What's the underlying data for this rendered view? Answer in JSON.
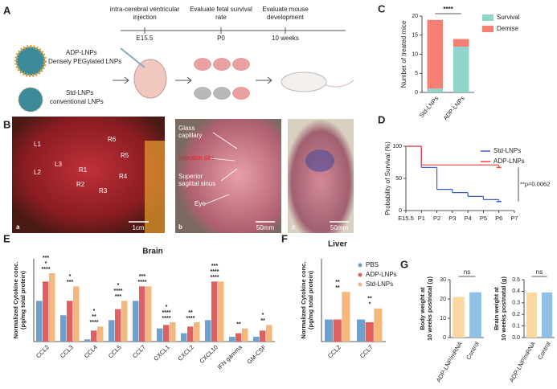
{
  "panel_a": {
    "label": "A",
    "timeline": [
      {
        "event": [
          "intra-cerebral ventricular",
          "injection"
        ],
        "time": "E15.5"
      },
      {
        "event": [
          "Evaluate fetal survival",
          "rate"
        ],
        "time": "P0"
      },
      {
        "event": [
          "Evaluate mouse",
          "development"
        ],
        "time": "10 weeks"
      }
    ],
    "formulations": [
      {
        "name": "ADP-LNPs",
        "description": "Densely PEGylated LNPs"
      },
      {
        "name": "Std-LNPs",
        "description": "conventional LNPs"
      }
    ]
  },
  "panel_b": {
    "label": "B",
    "photo_a": {
      "tag": "a",
      "scale": "1cm",
      "lobes": [
        "L1",
        "L3",
        "L2",
        "R1",
        "R2",
        "R3",
        "R4",
        "R5",
        "R6"
      ]
    },
    "photo_b": {
      "tag": "b",
      "scale": "50mm",
      "labels": [
        [
          "Glass",
          "capillary"
        ],
        [
          "Injection site"
        ],
        [
          "Superior",
          "sagittal sinus"
        ],
        [
          "Eye"
        ]
      ]
    },
    "photo_c": {
      "tag": "c",
      "scale": "50mm"
    }
  },
  "chart_data": [
    {
      "panel": "C",
      "type": "stacked_bar",
      "categories": [
        "Std-LNPs",
        "ADP-LNPs"
      ],
      "series": [
        {
          "name": "Survival",
          "color": "#8fd5cc",
          "values": [
            1,
            12
          ]
        },
        {
          "name": "Demise",
          "color": "#f47f72",
          "values": [
            18,
            2
          ]
        }
      ],
      "ylabel": "Number of treated mice",
      "ylim": [
        0,
        20
      ],
      "yticks": [
        0,
        5,
        10,
        15,
        20
      ],
      "annotation": "****"
    },
    {
      "panel": "D",
      "type": "step",
      "categories": [
        "E15.5",
        "P1",
        "P2",
        "P3",
        "P4",
        "P5",
        "P6",
        "P7"
      ],
      "series": [
        {
          "name": "Std-LNPs",
          "color": "#3a5fcd",
          "values": [
            100,
            67,
            33,
            28,
            22,
            17,
            14,
            null
          ]
        },
        {
          "name": "ADP-LNPs",
          "color": "#e8453c",
          "values": [
            100,
            71,
            71,
            71,
            71,
            71,
            67,
            null
          ]
        }
      ],
      "ylabel": "Probability of Survival (%)",
      "ylim": [
        0,
        100
      ],
      "yticks": [
        0,
        50,
        100
      ],
      "annotation": "**p=0.0062"
    },
    {
      "panel": "E",
      "type": "grouped_bar",
      "title": "Brain",
      "log_scale": true,
      "ylim": [
        0.1,
        100
      ],
      "ylabel": [
        "Normalized Cytokine conc.",
        "(pg/mg total protein)"
      ],
      "categories": [
        "CCL2",
        "CCL3",
        "CCL4",
        "CCL5",
        "CCL7",
        "CXCL1",
        "CXCL2",
        "CXCL10",
        "IFN gamma",
        "GM-CSF"
      ],
      "series": [
        {
          "name": "PBS",
          "color": "#6ea0cf",
          "values": [
            3,
            0.9,
            0.12,
            0.6,
            3,
            0.3,
            0.2,
            0.6,
            0.15,
            0.15
          ]
        },
        {
          "name": "ADP-LNPs",
          "color": "#e06060",
          "values": [
            15,
            3,
            0.25,
            1.5,
            10,
            0.4,
            0.35,
            15,
            0.2,
            0.25
          ]
        },
        {
          "name": "Std-LNPs",
          "color": "#f5b87a",
          "values": [
            30,
            10,
            0.35,
            3,
            10,
            0.5,
            0.5,
            15,
            0.3,
            0.4
          ]
        }
      ],
      "significance": [
        [
          "****",
          "*",
          "***"
        ],
        [
          "***",
          "*"
        ],
        [
          "****",
          "**",
          "*"
        ],
        [
          "***",
          "****",
          "*"
        ],
        [
          "****",
          "***"
        ],
        [
          "****",
          "****",
          "*"
        ],
        [
          "****",
          "**"
        ],
        [
          "****",
          "****",
          "***"
        ],
        [
          "**"
        ],
        [
          "**",
          "*"
        ]
      ]
    },
    {
      "panel": "F",
      "type": "grouped_bar",
      "title": "Liver",
      "ylim": [
        0,
        15
      ],
      "ylabel": [
        "Normalized Cytokine conc.",
        "(pg/mg total protein)"
      ],
      "categories": [
        "CCL2",
        "CCL7"
      ],
      "series": [
        {
          "color": "#6ea0cf",
          "values": [
            4,
            4
          ]
        },
        {
          "color": "#e06060",
          "values": [
            4,
            3.5
          ]
        },
        {
          "color": "#f5b87a",
          "values": [
            9,
            6
          ]
        }
      ],
      "significance": [
        [
          "**",
          "**"
        ],
        [
          "*",
          "**"
        ]
      ]
    },
    {
      "panel": "G",
      "type": "bar",
      "categories": [
        "ADP-LNP/mRNA",
        "Control"
      ],
      "colors": [
        "#fdd8a0",
        "#8ec1e3"
      ],
      "values": [
        21,
        23.5
      ],
      "ylabel": [
        "Body weight at",
        "10 weeks postnatal (g)"
      ],
      "ylim": [
        0,
        30
      ],
      "yticks": [
        0,
        10,
        20,
        30
      ],
      "annotation": "ns"
    },
    {
      "type": "bar",
      "categories": [
        "ADP-LNP/mRNA",
        "Control"
      ],
      "colors": [
        "#fdd8a0",
        "#8ec1e3"
      ],
      "values": [
        0.39,
        0.39
      ],
      "ylabel": [
        "Brain weight at",
        "10 weeks postnatal (g)"
      ],
      "ylim": [
        0,
        0.5
      ],
      "yticks": [
        {
          "value": 0,
          "label": "0.0"
        },
        0.1,
        0.2,
        0.3,
        0.4,
        0.5
      ],
      "annotation": "ns"
    }
  ]
}
